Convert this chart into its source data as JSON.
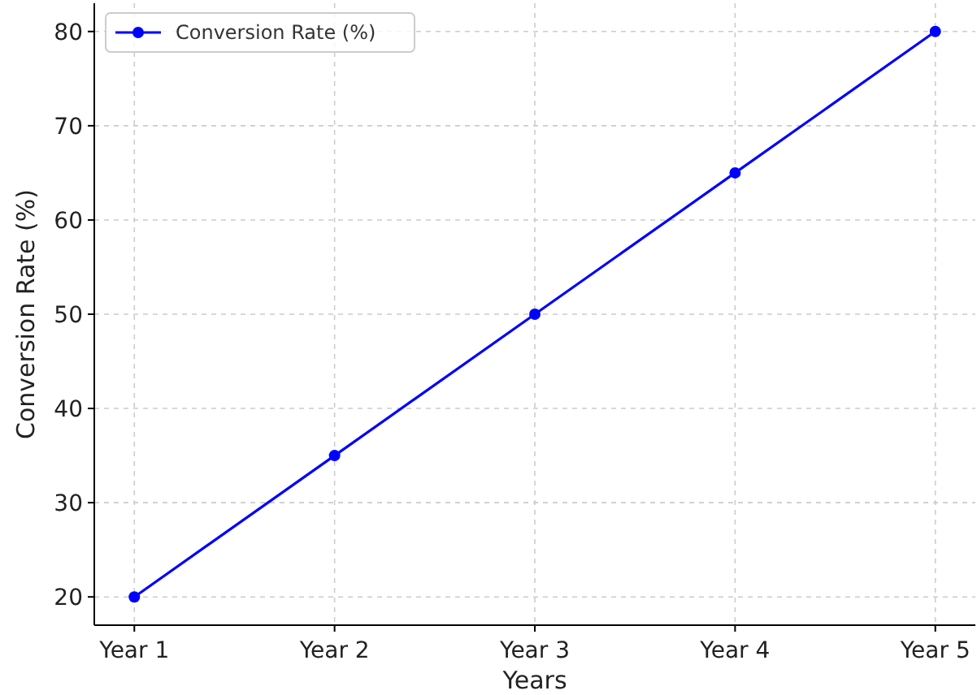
{
  "chart_data": {
    "type": "line",
    "xlabel": "Years",
    "ylabel": "Conversion Rate (%)",
    "categories": [
      "Year 1",
      "Year 2",
      "Year 3",
      "Year 4",
      "Year 5"
    ],
    "series": [
      {
        "name": "Conversion Rate (%)",
        "color": "#0000ff",
        "values": [
          20,
          35,
          50,
          65,
          80
        ]
      }
    ],
    "ylim": [
      17,
      83
    ],
    "yticks": [
      20,
      30,
      40,
      50,
      60,
      70,
      80
    ],
    "grid": true,
    "legend": "top left",
    "marker": "circle",
    "line_style": "solid"
  }
}
